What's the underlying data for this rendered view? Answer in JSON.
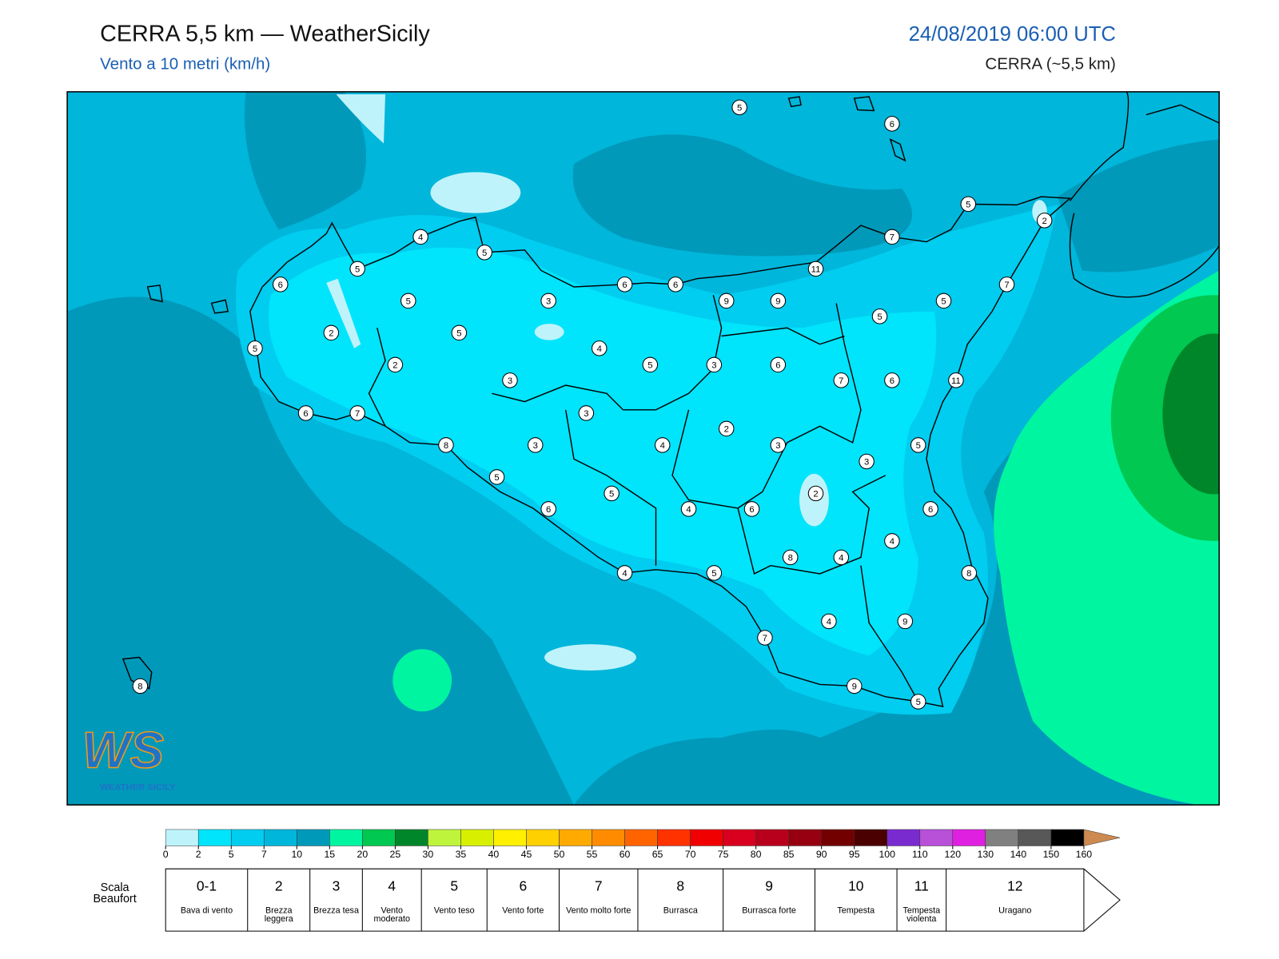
{
  "header": {
    "title": "CERRA 5,5 km — WeatherSicily",
    "subtitle": "Vento a 10 metri (km/h)",
    "datetime": "24/08/2019 06:00 UTC",
    "model": "CERRA (~5,5 km)"
  },
  "map": {
    "stations": [
      5,
      6,
      5,
      2,
      4,
      7,
      5,
      5,
      11,
      6,
      6,
      6,
      7,
      5,
      3,
      9,
      9,
      5,
      5,
      2,
      5,
      5,
      4,
      2,
      5,
      3,
      6,
      3,
      7,
      6,
      11,
      6,
      7,
      3,
      2,
      8,
      3,
      4,
      3,
      5,
      3,
      5,
      5,
      2,
      6,
      4,
      6,
      6,
      4,
      8,
      4,
      8,
      4,
      5,
      4,
      9,
      7,
      9,
      5,
      8
    ]
  },
  "colorbar": {
    "ticks": [
      0,
      2,
      5,
      7,
      10,
      15,
      20,
      25,
      30,
      35,
      40,
      45,
      50,
      55,
      60,
      65,
      70,
      75,
      80,
      85,
      90,
      95,
      100,
      110,
      120,
      130,
      140,
      150,
      160
    ],
    "colors": [
      "#bff3fb",
      "#00e4fc",
      "#00cdf0",
      "#00b6da",
      "#0099ba",
      "#00f5a0",
      "#00c850",
      "#00862a",
      "#bef53c",
      "#d8f000",
      "#fff000",
      "#ffd000",
      "#ffaa00",
      "#ff8c00",
      "#ff6400",
      "#ff3200",
      "#f00000",
      "#d8001e",
      "#b8001c",
      "#960010",
      "#720000",
      "#4a0000",
      "#7a2bd0",
      "#b850d8",
      "#e020e0",
      "#808080",
      "#585858",
      "#000000",
      "#8a4a28",
      "#cd8a50"
    ]
  },
  "beaufort": {
    "label": "Scala Beaufort",
    "classes": [
      {
        "force": "0-1",
        "name": "Bava di vento"
      },
      {
        "force": "2",
        "name": "Brezza leggera"
      },
      {
        "force": "3",
        "name": "Brezza tesa"
      },
      {
        "force": "4",
        "name": "Vento moderato"
      },
      {
        "force": "5",
        "name": "Vento teso"
      },
      {
        "force": "6",
        "name": "Vento forte"
      },
      {
        "force": "7",
        "name": "Vento molto forte"
      },
      {
        "force": "8",
        "name": "Burrasca"
      },
      {
        "force": "9",
        "name": "Burrasca forte"
      },
      {
        "force": "10",
        "name": "Tempesta"
      },
      {
        "force": "11",
        "name": "Tempesta violenta"
      },
      {
        "force": "12",
        "name": "Uragano"
      }
    ]
  },
  "logo": {
    "letters": "WS",
    "name": "WEATHER SICILY"
  }
}
